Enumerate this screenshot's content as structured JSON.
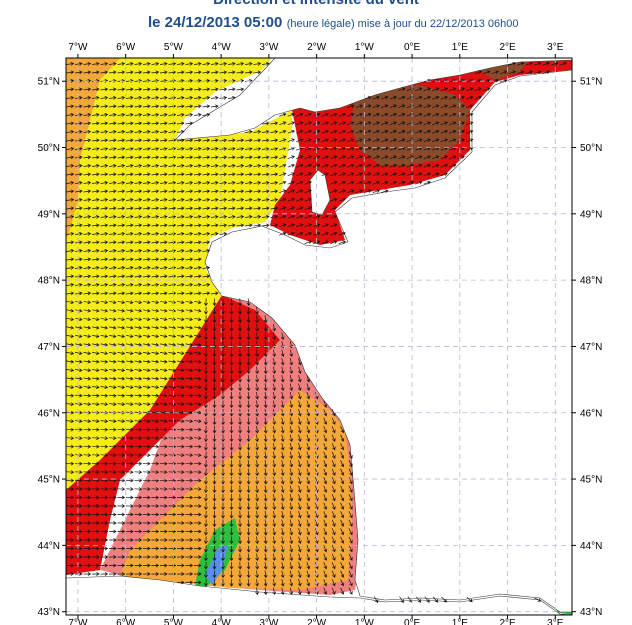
{
  "title": {
    "heading": "Direction et intensité du vent",
    "date": "le 24/12/2013 05:00",
    "note": "(heure légale) mise à jour du 22/12/2013 06h00"
  },
  "map": {
    "lon_labels": [
      "7°W",
      "6°W",
      "5°W",
      "4°W",
      "3°W",
      "2°W",
      "1°W",
      "0°E",
      "1°E",
      "2°E",
      "3°E"
    ],
    "lat_labels": [
      "51°N",
      "50°N",
      "49°N",
      "48°N",
      "47°N",
      "46°N",
      "45°N",
      "44°N",
      "43°N"
    ],
    "lon_range": [
      -7.25,
      3.35
    ],
    "lat_range": [
      42.95,
      51.35
    ],
    "colors": {
      "land": "#ffffff",
      "yellow": "#f5ec1a",
      "orange": "#f5a83a",
      "pink": "#f08080",
      "red": "#e01010",
      "brown": "#8b4a2a",
      "green": "#2fbf3f",
      "blue": "#5a8ff0",
      "grid": "#b8b8d8"
    }
  }
}
